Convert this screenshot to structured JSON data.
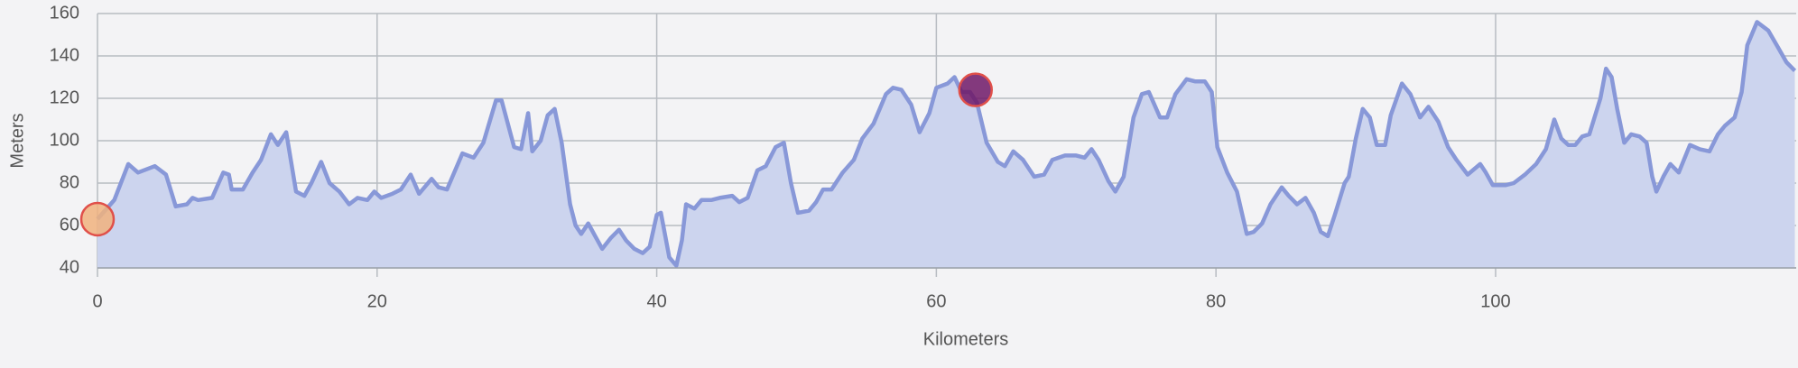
{
  "chart_data": {
    "type": "area",
    "xlabel": "Kilometers",
    "ylabel": "Meters",
    "xlim": [
      0,
      121.5
    ],
    "ylim": [
      40,
      160
    ],
    "xticks": [
      0,
      20,
      40,
      60,
      80,
      100
    ],
    "yticks": [
      40,
      60,
      80,
      100,
      120,
      140,
      160
    ],
    "grid": true,
    "series": [
      {
        "color": "#8898d8",
        "fill": "#ccd4ee",
        "x": [
          0,
          1.2,
          2.2,
          2.9,
          4.1,
          4.9,
          5.6,
          6.4,
          6.8,
          7.2,
          8.2,
          9.0,
          9.4,
          9.6,
          10.4,
          11.1,
          11.7,
          12.4,
          12.9,
          13.5,
          14.2,
          14.8,
          15.3,
          16.0,
          16.6,
          17.3,
          18.0,
          18.6,
          19.3,
          19.8,
          20.3,
          21.1,
          21.7,
          22.4,
          23.0,
          23.9,
          24.4,
          25.0,
          26.1,
          26.9,
          27.6,
          28.5,
          28.9,
          29.8,
          30.3,
          30.8,
          31.1,
          31.7,
          32.2,
          32.7,
          33.2,
          33.8,
          34.2,
          34.6,
          35.1,
          35.6,
          36.1,
          36.7,
          37.3,
          37.8,
          38.4,
          39.0,
          39.5,
          40.0,
          40.3,
          40.9,
          41.4,
          41.8,
          42.1,
          42.7,
          43.2,
          43.9,
          44.5,
          45.4,
          45.9,
          46.5,
          47.2,
          47.8,
          48.5,
          49.1,
          49.6,
          50.1,
          50.9,
          51.4,
          51.9,
          52.5,
          53.3,
          54.1,
          54.7,
          55.5,
          56.4,
          56.9,
          57.5,
          58.2,
          58.8,
          59.5,
          60.0,
          60.8,
          61.3,
          61.8,
          62.4,
          62.9,
          63.6,
          64.4,
          64.9,
          65.5,
          66.2,
          67.0,
          67.7,
          68.3,
          69.2,
          70.0,
          70.6,
          71.1,
          71.6,
          72.3,
          72.8,
          73.4,
          74.1,
          74.7,
          75.2,
          76.0,
          76.5,
          77.1,
          77.9,
          78.5,
          79.2,
          79.7,
          80.1,
          80.8,
          81.5,
          82.2,
          82.7,
          83.3,
          83.9,
          84.7,
          85.2,
          85.8,
          86.4,
          87.0,
          87.5,
          88.0,
          88.5,
          89.2,
          89.5,
          90.0,
          90.5,
          91.0,
          91.5,
          92.1,
          92.5,
          93.3,
          93.9,
          94.6,
          95.2,
          95.9,
          96.6,
          97.2,
          98.0,
          98.9,
          99.3,
          99.8,
          100.7,
          101.3,
          102.1,
          102.9,
          103.6,
          104.2,
          104.7,
          105.2,
          105.7,
          106.2,
          106.7,
          107.5,
          107.9,
          108.3,
          108.7,
          109.2,
          109.7,
          110.3,
          110.8,
          111.2,
          111.5,
          112.0,
          112.5,
          113.1,
          113.9,
          114.6,
          115.3,
          115.9,
          116.4,
          117.1,
          117.6,
          118.0,
          118.7,
          119.5,
          120.2,
          120.8,
          121.4
        ],
        "values": [
          63,
          72,
          89,
          85,
          88,
          84,
          69,
          70,
          73,
          72,
          73,
          85,
          84,
          77,
          77,
          85,
          91,
          103,
          98,
          104,
          76,
          74,
          80,
          90,
          80,
          76,
          70,
          73,
          72,
          76,
          73,
          75,
          77,
          84,
          75,
          82,
          78,
          77,
          94,
          92,
          99,
          119,
          119,
          97,
          96,
          113,
          95,
          100,
          112,
          115,
          99,
          70,
          60,
          56,
          61,
          55,
          49,
          54,
          58,
          53,
          49,
          47,
          50,
          65,
          66,
          45,
          41,
          53,
          70,
          68,
          72,
          72,
          73,
          74,
          71,
          73,
          86,
          88,
          97,
          99,
          80,
          66,
          67,
          71,
          77,
          77,
          85,
          91,
          101,
          108,
          122,
          125,
          124,
          117,
          104,
          113,
          125,
          127,
          130,
          123,
          123,
          118,
          99,
          90,
          88,
          95,
          91,
          83,
          84,
          91,
          93,
          93,
          92,
          96,
          91,
          81,
          76,
          83,
          111,
          122,
          123,
          111,
          111,
          122,
          129,
          128,
          128,
          123,
          97,
          85,
          76,
          56,
          57,
          61,
          70,
          78,
          74,
          70,
          73,
          66,
          57,
          55,
          65,
          80,
          83,
          101,
          115,
          111,
          98,
          98,
          112,
          127,
          122,
          111,
          116,
          109,
          97,
          91,
          84,
          89,
          85,
          79,
          79,
          80,
          84,
          89,
          96,
          110,
          101,
          98,
          98,
          102,
          103,
          120,
          134,
          130,
          115,
          99,
          103,
          102,
          99,
          83,
          76,
          83,
          89,
          85,
          98,
          96,
          95,
          103,
          107,
          111,
          123,
          145,
          156,
          152,
          144,
          137,
          133
        ]
      }
    ],
    "markers": {
      "x": [
        0,
        62.8
      ],
      "values": [
        63,
        124
      ],
      "colors": [
        "#f0b27e",
        "#6e1767"
      ],
      "stroke": "#e0504a"
    }
  }
}
